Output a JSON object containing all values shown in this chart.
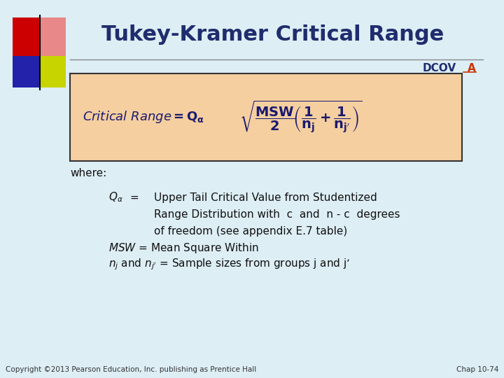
{
  "title": "Tukey-Kramer Critical Range",
  "bg_color": "#ddeef5",
  "title_color": "#1f2d6e",
  "formula_bg": "#f5cfa0",
  "formula_border": "#333333",
  "footer_left": "Copyright ©2013 Pearson Education, Inc. publishing as Prentice Hall",
  "footer_right": "Chap 10-74",
  "dcov_color": "#1f2d6e",
  "a_color": "#cc3300",
  "text_color": "#111111"
}
